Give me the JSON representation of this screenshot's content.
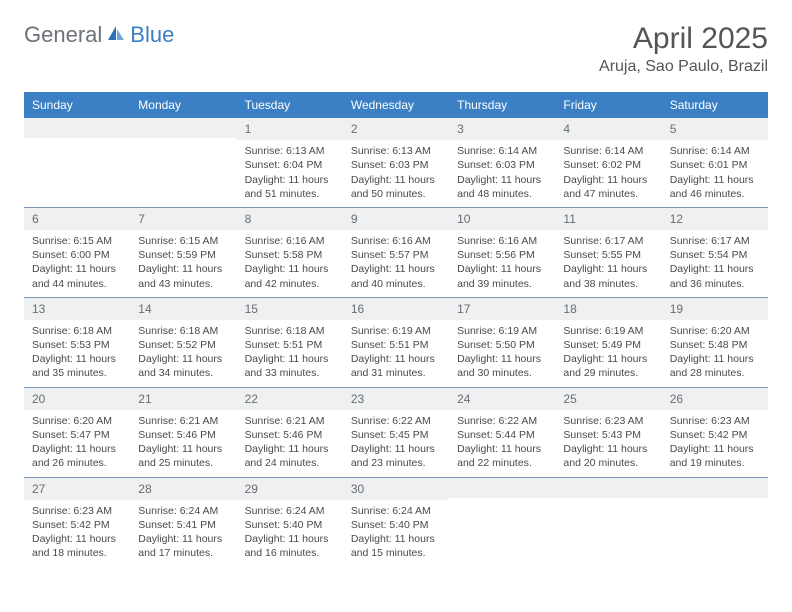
{
  "logo": {
    "word1": "General",
    "word2": "Blue"
  },
  "header": {
    "month_title": "April 2025",
    "location": "Aruja, Sao Paulo, Brazil"
  },
  "day_names": [
    "Sunday",
    "Monday",
    "Tuesday",
    "Wednesday",
    "Thursday",
    "Friday",
    "Saturday"
  ],
  "colors": {
    "header_bg": "#3b7fc4",
    "header_fg": "#ffffff",
    "daynum_bg": "#eef0f1",
    "week_border": "#7a98b5",
    "body_text": "#4a4a4a"
  },
  "weeks": [
    [
      null,
      null,
      {
        "n": "1",
        "sr": "Sunrise: 6:13 AM",
        "ss": "Sunset: 6:04 PM",
        "d1": "Daylight: 11 hours",
        "d2": "and 51 minutes."
      },
      {
        "n": "2",
        "sr": "Sunrise: 6:13 AM",
        "ss": "Sunset: 6:03 PM",
        "d1": "Daylight: 11 hours",
        "d2": "and 50 minutes."
      },
      {
        "n": "3",
        "sr": "Sunrise: 6:14 AM",
        "ss": "Sunset: 6:03 PM",
        "d1": "Daylight: 11 hours",
        "d2": "and 48 minutes."
      },
      {
        "n": "4",
        "sr": "Sunrise: 6:14 AM",
        "ss": "Sunset: 6:02 PM",
        "d1": "Daylight: 11 hours",
        "d2": "and 47 minutes."
      },
      {
        "n": "5",
        "sr": "Sunrise: 6:14 AM",
        "ss": "Sunset: 6:01 PM",
        "d1": "Daylight: 11 hours",
        "d2": "and 46 minutes."
      }
    ],
    [
      {
        "n": "6",
        "sr": "Sunrise: 6:15 AM",
        "ss": "Sunset: 6:00 PM",
        "d1": "Daylight: 11 hours",
        "d2": "and 44 minutes."
      },
      {
        "n": "7",
        "sr": "Sunrise: 6:15 AM",
        "ss": "Sunset: 5:59 PM",
        "d1": "Daylight: 11 hours",
        "d2": "and 43 minutes."
      },
      {
        "n": "8",
        "sr": "Sunrise: 6:16 AM",
        "ss": "Sunset: 5:58 PM",
        "d1": "Daylight: 11 hours",
        "d2": "and 42 minutes."
      },
      {
        "n": "9",
        "sr": "Sunrise: 6:16 AM",
        "ss": "Sunset: 5:57 PM",
        "d1": "Daylight: 11 hours",
        "d2": "and 40 minutes."
      },
      {
        "n": "10",
        "sr": "Sunrise: 6:16 AM",
        "ss": "Sunset: 5:56 PM",
        "d1": "Daylight: 11 hours",
        "d2": "and 39 minutes."
      },
      {
        "n": "11",
        "sr": "Sunrise: 6:17 AM",
        "ss": "Sunset: 5:55 PM",
        "d1": "Daylight: 11 hours",
        "d2": "and 38 minutes."
      },
      {
        "n": "12",
        "sr": "Sunrise: 6:17 AM",
        "ss": "Sunset: 5:54 PM",
        "d1": "Daylight: 11 hours",
        "d2": "and 36 minutes."
      }
    ],
    [
      {
        "n": "13",
        "sr": "Sunrise: 6:18 AM",
        "ss": "Sunset: 5:53 PM",
        "d1": "Daylight: 11 hours",
        "d2": "and 35 minutes."
      },
      {
        "n": "14",
        "sr": "Sunrise: 6:18 AM",
        "ss": "Sunset: 5:52 PM",
        "d1": "Daylight: 11 hours",
        "d2": "and 34 minutes."
      },
      {
        "n": "15",
        "sr": "Sunrise: 6:18 AM",
        "ss": "Sunset: 5:51 PM",
        "d1": "Daylight: 11 hours",
        "d2": "and 33 minutes."
      },
      {
        "n": "16",
        "sr": "Sunrise: 6:19 AM",
        "ss": "Sunset: 5:51 PM",
        "d1": "Daylight: 11 hours",
        "d2": "and 31 minutes."
      },
      {
        "n": "17",
        "sr": "Sunrise: 6:19 AM",
        "ss": "Sunset: 5:50 PM",
        "d1": "Daylight: 11 hours",
        "d2": "and 30 minutes."
      },
      {
        "n": "18",
        "sr": "Sunrise: 6:19 AM",
        "ss": "Sunset: 5:49 PM",
        "d1": "Daylight: 11 hours",
        "d2": "and 29 minutes."
      },
      {
        "n": "19",
        "sr": "Sunrise: 6:20 AM",
        "ss": "Sunset: 5:48 PM",
        "d1": "Daylight: 11 hours",
        "d2": "and 28 minutes."
      }
    ],
    [
      {
        "n": "20",
        "sr": "Sunrise: 6:20 AM",
        "ss": "Sunset: 5:47 PM",
        "d1": "Daylight: 11 hours",
        "d2": "and 26 minutes."
      },
      {
        "n": "21",
        "sr": "Sunrise: 6:21 AM",
        "ss": "Sunset: 5:46 PM",
        "d1": "Daylight: 11 hours",
        "d2": "and 25 minutes."
      },
      {
        "n": "22",
        "sr": "Sunrise: 6:21 AM",
        "ss": "Sunset: 5:46 PM",
        "d1": "Daylight: 11 hours",
        "d2": "and 24 minutes."
      },
      {
        "n": "23",
        "sr": "Sunrise: 6:22 AM",
        "ss": "Sunset: 5:45 PM",
        "d1": "Daylight: 11 hours",
        "d2": "and 23 minutes."
      },
      {
        "n": "24",
        "sr": "Sunrise: 6:22 AM",
        "ss": "Sunset: 5:44 PM",
        "d1": "Daylight: 11 hours",
        "d2": "and 22 minutes."
      },
      {
        "n": "25",
        "sr": "Sunrise: 6:23 AM",
        "ss": "Sunset: 5:43 PM",
        "d1": "Daylight: 11 hours",
        "d2": "and 20 minutes."
      },
      {
        "n": "26",
        "sr": "Sunrise: 6:23 AM",
        "ss": "Sunset: 5:42 PM",
        "d1": "Daylight: 11 hours",
        "d2": "and 19 minutes."
      }
    ],
    [
      {
        "n": "27",
        "sr": "Sunrise: 6:23 AM",
        "ss": "Sunset: 5:42 PM",
        "d1": "Daylight: 11 hours",
        "d2": "and 18 minutes."
      },
      {
        "n": "28",
        "sr": "Sunrise: 6:24 AM",
        "ss": "Sunset: 5:41 PM",
        "d1": "Daylight: 11 hours",
        "d2": "and 17 minutes."
      },
      {
        "n": "29",
        "sr": "Sunrise: 6:24 AM",
        "ss": "Sunset: 5:40 PM",
        "d1": "Daylight: 11 hours",
        "d2": "and 16 minutes."
      },
      {
        "n": "30",
        "sr": "Sunrise: 6:24 AM",
        "ss": "Sunset: 5:40 PM",
        "d1": "Daylight: 11 hours",
        "d2": "and 15 minutes."
      },
      null,
      null,
      null
    ]
  ]
}
